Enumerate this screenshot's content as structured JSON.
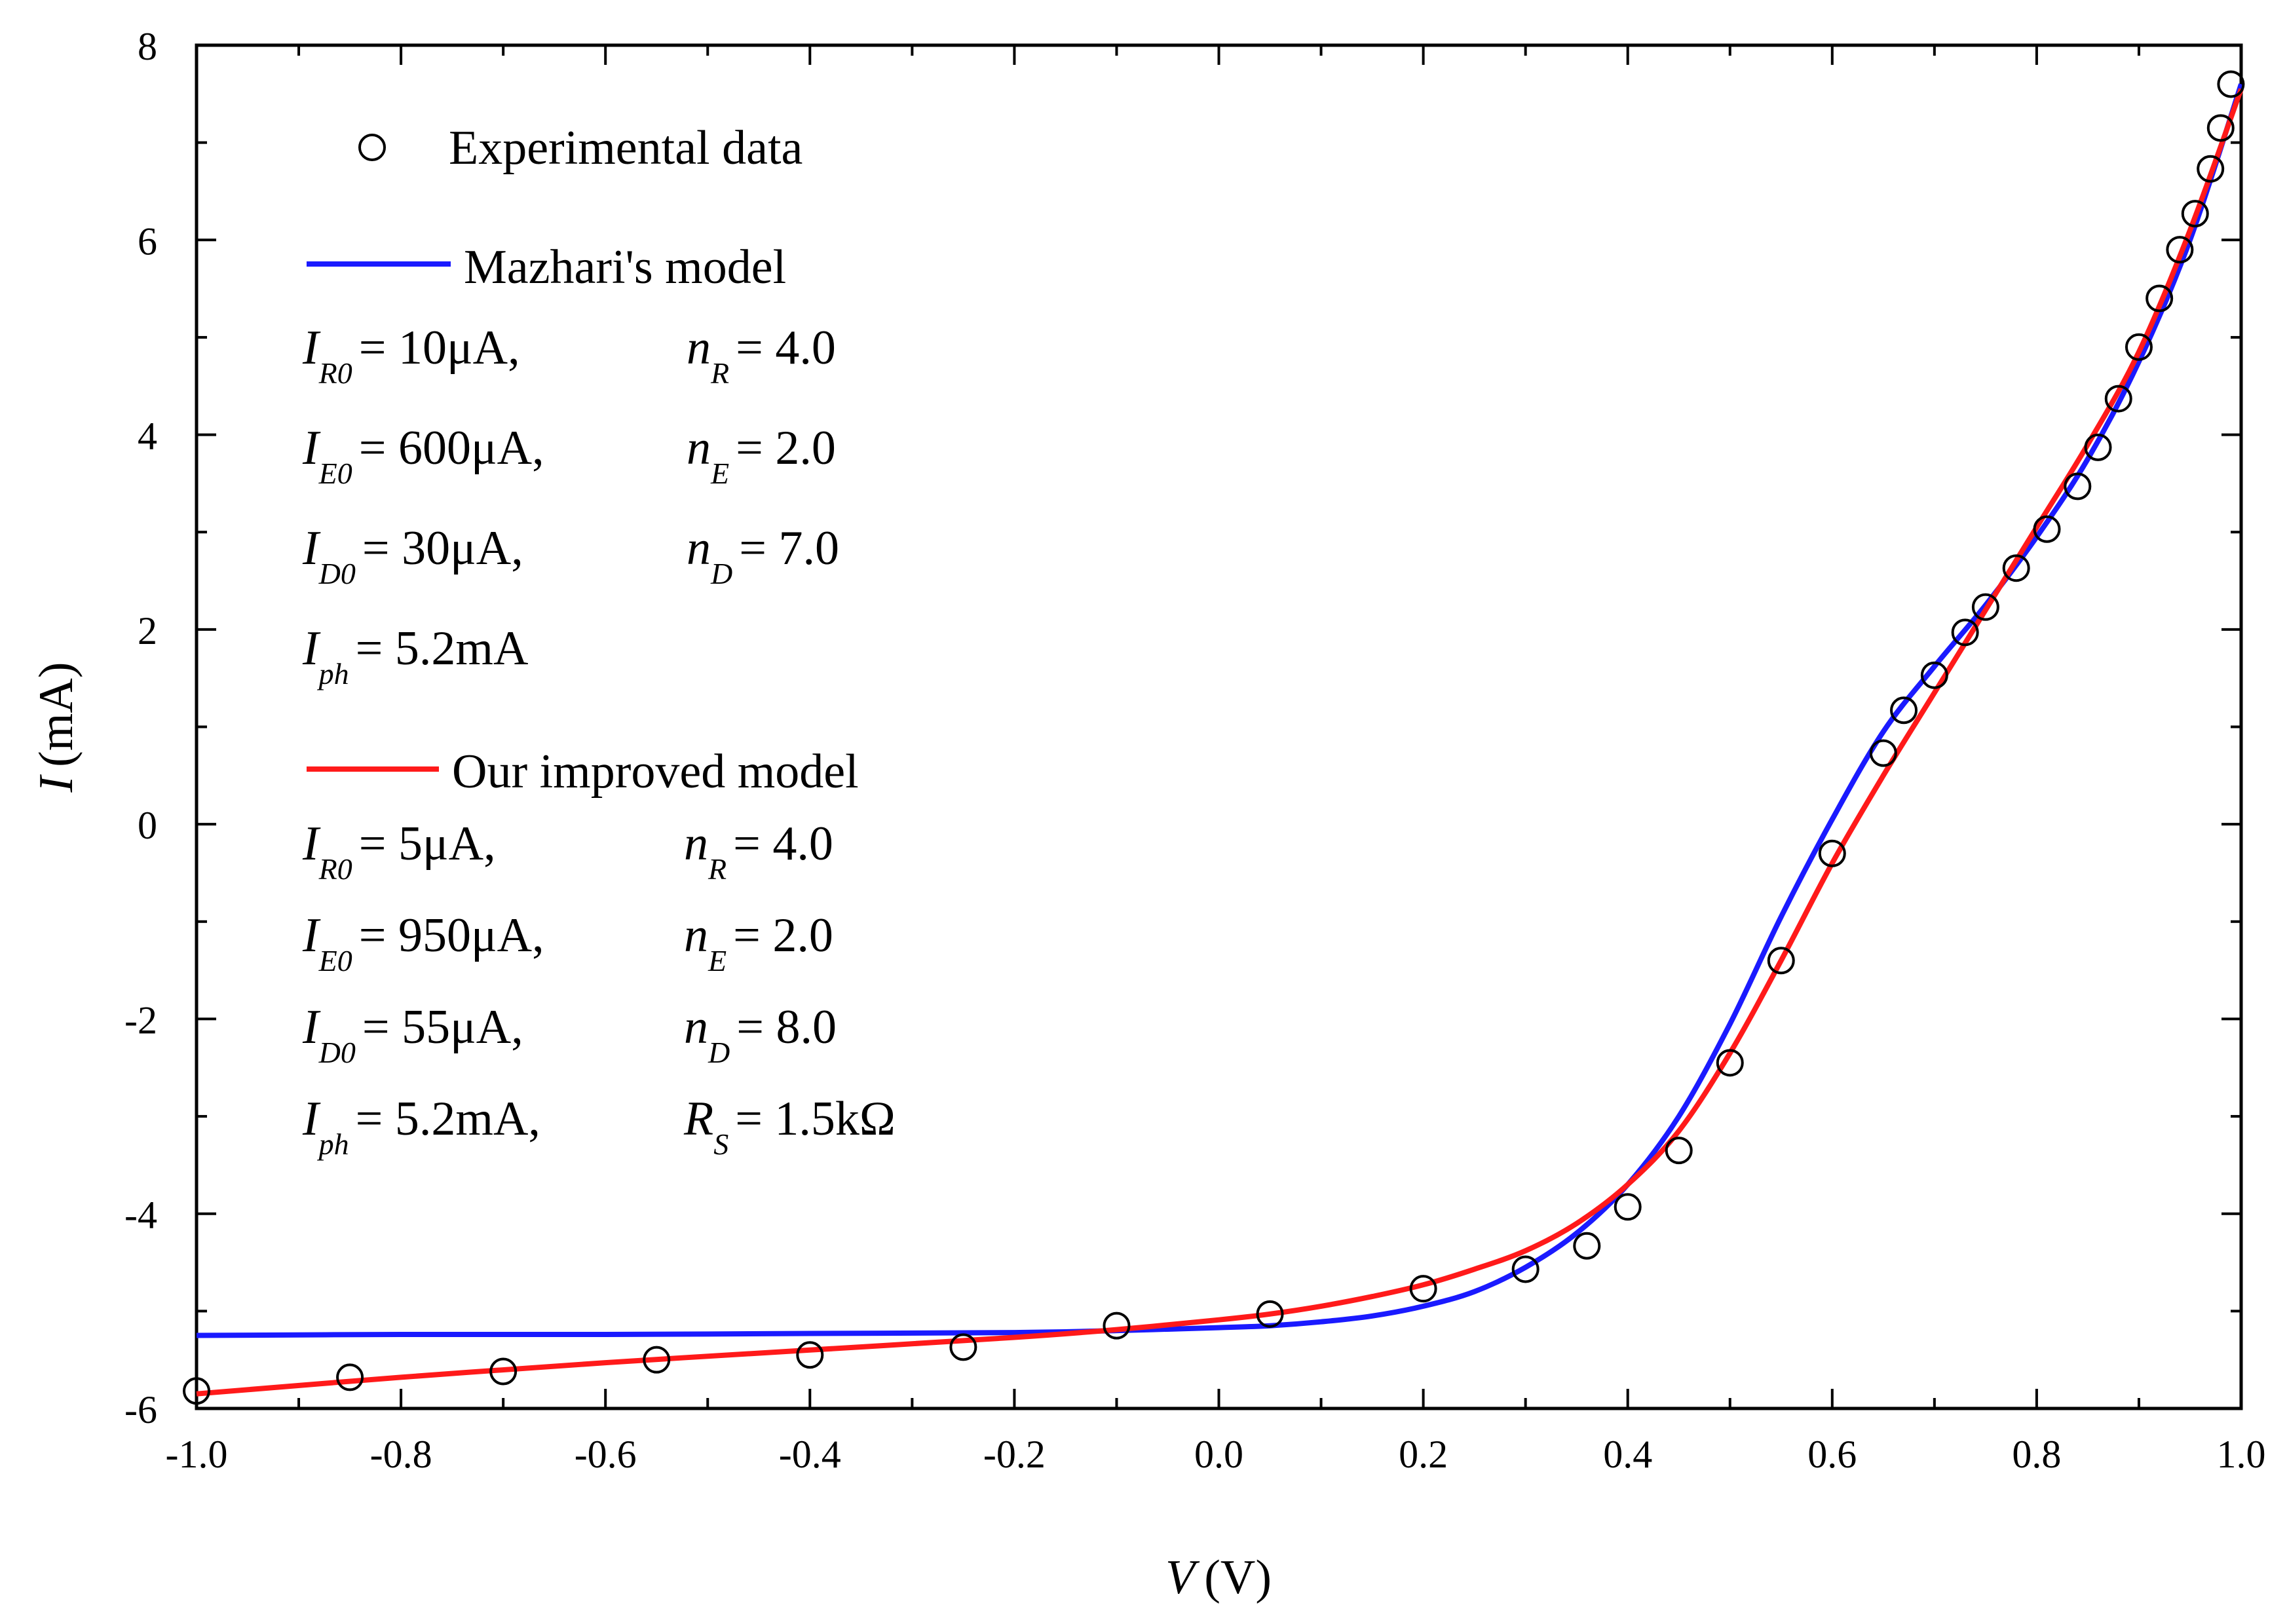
{
  "chart_data": {
    "type": "scatter",
    "title": "",
    "xlabel": {
      "symbol": "V",
      "unit": "(V)"
    },
    "ylabel": {
      "symbol": "I",
      "unit": "(mA)"
    },
    "xlim": [
      -1.0,
      1.0
    ],
    "ylim": [
      -6,
      8
    ],
    "xticks": [
      -1.0,
      -0.8,
      -0.6,
      -0.4,
      -0.2,
      0.0,
      0.2,
      0.4,
      0.6,
      0.8,
      1.0
    ],
    "xtick_labels": [
      "-1.0",
      "-0.8",
      "-0.6",
      "-0.4",
      "-0.2",
      "0.0",
      "0.2",
      "0.4",
      "0.6",
      "0.8",
      "1.0"
    ],
    "yticks": [
      -6,
      -4,
      -2,
      0,
      2,
      4,
      6,
      8
    ],
    "ytick_labels": [
      "-6",
      "-4",
      "-2",
      "0",
      "2",
      "4",
      "6",
      "8"
    ],
    "grid": false,
    "legend_position": "top-left",
    "series": [
      {
        "name": "Experimental data",
        "kind": "markers",
        "marker": "open-circle",
        "color": "#000000",
        "x": [
          -1.0,
          -0.85,
          -0.7,
          -0.55,
          -0.4,
          -0.25,
          -0.1,
          0.05,
          0.2,
          0.3,
          0.36,
          0.4,
          0.45,
          0.5,
          0.55,
          0.6,
          0.65,
          0.67,
          0.7,
          0.73,
          0.75,
          0.78,
          0.81,
          0.84,
          0.86,
          0.88,
          0.9,
          0.92,
          0.94,
          0.955,
          0.97,
          0.98,
          0.99
        ],
        "y": [
          -5.82,
          -5.68,
          -5.62,
          -5.5,
          -5.45,
          -5.37,
          -5.15,
          -5.03,
          -4.77,
          -4.57,
          -4.33,
          -3.93,
          -3.35,
          -2.45,
          -1.4,
          -0.3,
          0.73,
          1.17,
          1.53,
          1.97,
          2.23,
          2.63,
          3.03,
          3.47,
          3.87,
          4.37,
          4.9,
          5.4,
          5.9,
          6.27,
          6.73,
          7.15,
          7.6
        ]
      },
      {
        "name": "Mazhari's model",
        "kind": "line",
        "color": "#1a1aff",
        "x": [
          -1.0,
          -0.8,
          -0.6,
          -0.4,
          -0.2,
          -0.1,
          0.0,
          0.05,
          0.1,
          0.15,
          0.2,
          0.25,
          0.3,
          0.35,
          0.4,
          0.45,
          0.5,
          0.55,
          0.6,
          0.65,
          0.7,
          0.75,
          0.8,
          0.85,
          0.9,
          0.95,
          1.0
        ],
        "y": [
          -5.25,
          -5.24,
          -5.24,
          -5.23,
          -5.22,
          -5.2,
          -5.17,
          -5.15,
          -5.11,
          -5.05,
          -4.95,
          -4.8,
          -4.55,
          -4.2,
          -3.7,
          -3.0,
          -2.05,
          -0.95,
          0.05,
          0.95,
          1.62,
          2.25,
          2.95,
          3.75,
          4.75,
          6.0,
          7.6
        ]
      },
      {
        "name": "Our improved model",
        "kind": "line",
        "color": "#ff1a1a",
        "x": [
          -1.0,
          -0.8,
          -0.6,
          -0.4,
          -0.2,
          -0.1,
          0.0,
          0.05,
          0.1,
          0.15,
          0.2,
          0.25,
          0.3,
          0.35,
          0.4,
          0.45,
          0.5,
          0.55,
          0.6,
          0.65,
          0.7,
          0.75,
          0.8,
          0.85,
          0.9,
          0.95,
          1.0
        ],
        "y": [
          -5.85,
          -5.68,
          -5.53,
          -5.4,
          -5.27,
          -5.19,
          -5.09,
          -5.03,
          -4.95,
          -4.85,
          -4.73,
          -4.57,
          -4.38,
          -4.1,
          -3.7,
          -3.15,
          -2.35,
          -1.4,
          -0.4,
          0.5,
          1.35,
          2.2,
          3.05,
          3.9,
          4.85,
          6.1,
          7.55
        ]
      }
    ],
    "legend": {
      "experimental": "Experimental data",
      "mazhari": {
        "name": "Mazhari's model",
        "rows": [
          [
            {
              "sym": "I",
              "sub": "R0",
              "val": "= 10μA,"
            },
            {
              "sym": "n",
              "sub": "R",
              "val": "= 4.0"
            }
          ],
          [
            {
              "sym": "I",
              "sub": "E0",
              "val": "= 600μA,"
            },
            {
              "sym": "n",
              "sub": "E",
              "val": "= 2.0"
            }
          ],
          [
            {
              "sym": "I",
              "sub": "D0",
              "val": "= 30μA,"
            },
            {
              "sym": "n",
              "sub": "D",
              "val": "= 7.0"
            }
          ],
          [
            {
              "sym": "I",
              "sub": "ph",
              "val": "= 5.2mA"
            }
          ]
        ]
      },
      "improved": {
        "name": "Our improved model",
        "rows": [
          [
            {
              "sym": "I",
              "sub": "R0",
              "val": "= 5μA,"
            },
            {
              "sym": "n",
              "sub": "R",
              "val": "= 4.0"
            }
          ],
          [
            {
              "sym": "I",
              "sub": "E0",
              "val": "= 950μA,"
            },
            {
              "sym": "n",
              "sub": "E",
              "val": "= 2.0"
            }
          ],
          [
            {
              "sym": "I",
              "sub": "D0",
              "val": "= 55μA,"
            },
            {
              "sym": "n",
              "sub": "D",
              "val": "= 8.0"
            }
          ],
          [
            {
              "sym": "I",
              "sub": "ph",
              "val": "= 5.2mA,"
            },
            {
              "sym": "R",
              "sub": "S",
              "val": "= 1.5kΩ"
            }
          ]
        ]
      }
    }
  }
}
